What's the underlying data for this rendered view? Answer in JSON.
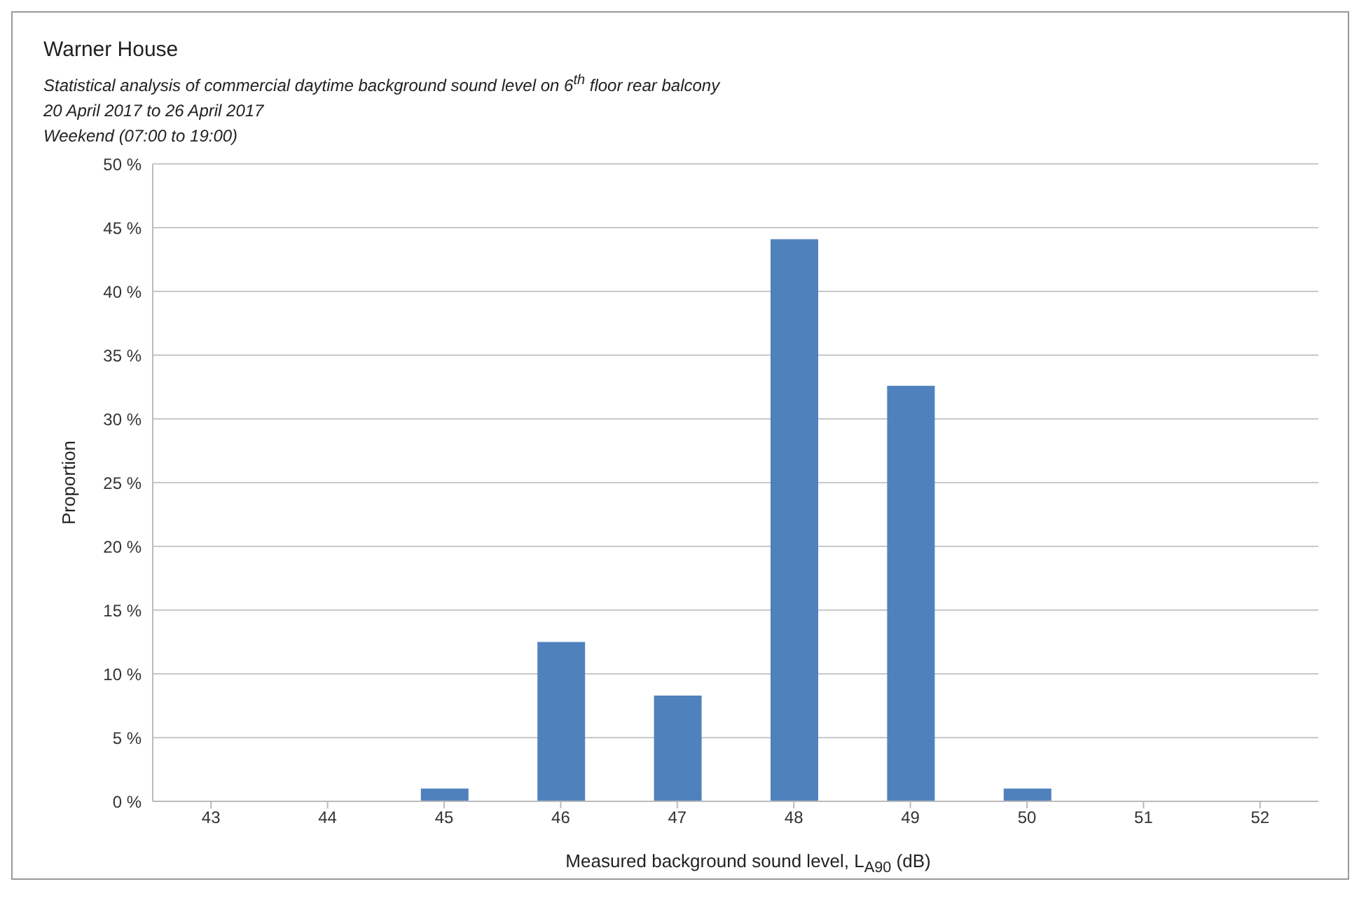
{
  "chart_data": {
    "type": "bar",
    "title": "Warner House",
    "subtitle": "Statistical analysis of commercial daytime background sound level on 6$^{th}$ floor rear balcony\n20 April 2017 to 26 April 2017\nWeekend (07:00 to 19:00)",
    "xlabel": "Measured background sound level, L$_{A90}$ (dB)",
    "ylabel": "Proportion",
    "categories": [
      "43",
      "44",
      "45",
      "46",
      "47",
      "48",
      "49",
      "50",
      "51",
      "52"
    ],
    "values": [
      0,
      0,
      1.0,
      12.5,
      8.3,
      44.1,
      32.6,
      1.0,
      0,
      0
    ],
    "color": "#4f81bd",
    "ylim": [
      0,
      50
    ],
    "yticks": [
      {
        "value": 0,
        "label": "0 %"
      },
      {
        "value": 5,
        "label": "5 %"
      },
      {
        "value": 10,
        "label": "10 %"
      },
      {
        "value": 15,
        "label": "15 %"
      },
      {
        "value": 20,
        "label": "20 %"
      },
      {
        "value": 25,
        "label": "25 %"
      },
      {
        "value": 30,
        "label": "30 %"
      },
      {
        "value": 35,
        "label": "35 %"
      },
      {
        "value": 40,
        "label": "40 %"
      },
      {
        "value": 45,
        "label": "45 %"
      },
      {
        "value": 50,
        "label": "50 %"
      }
    ],
    "grid": "y",
    "legend": false
  }
}
